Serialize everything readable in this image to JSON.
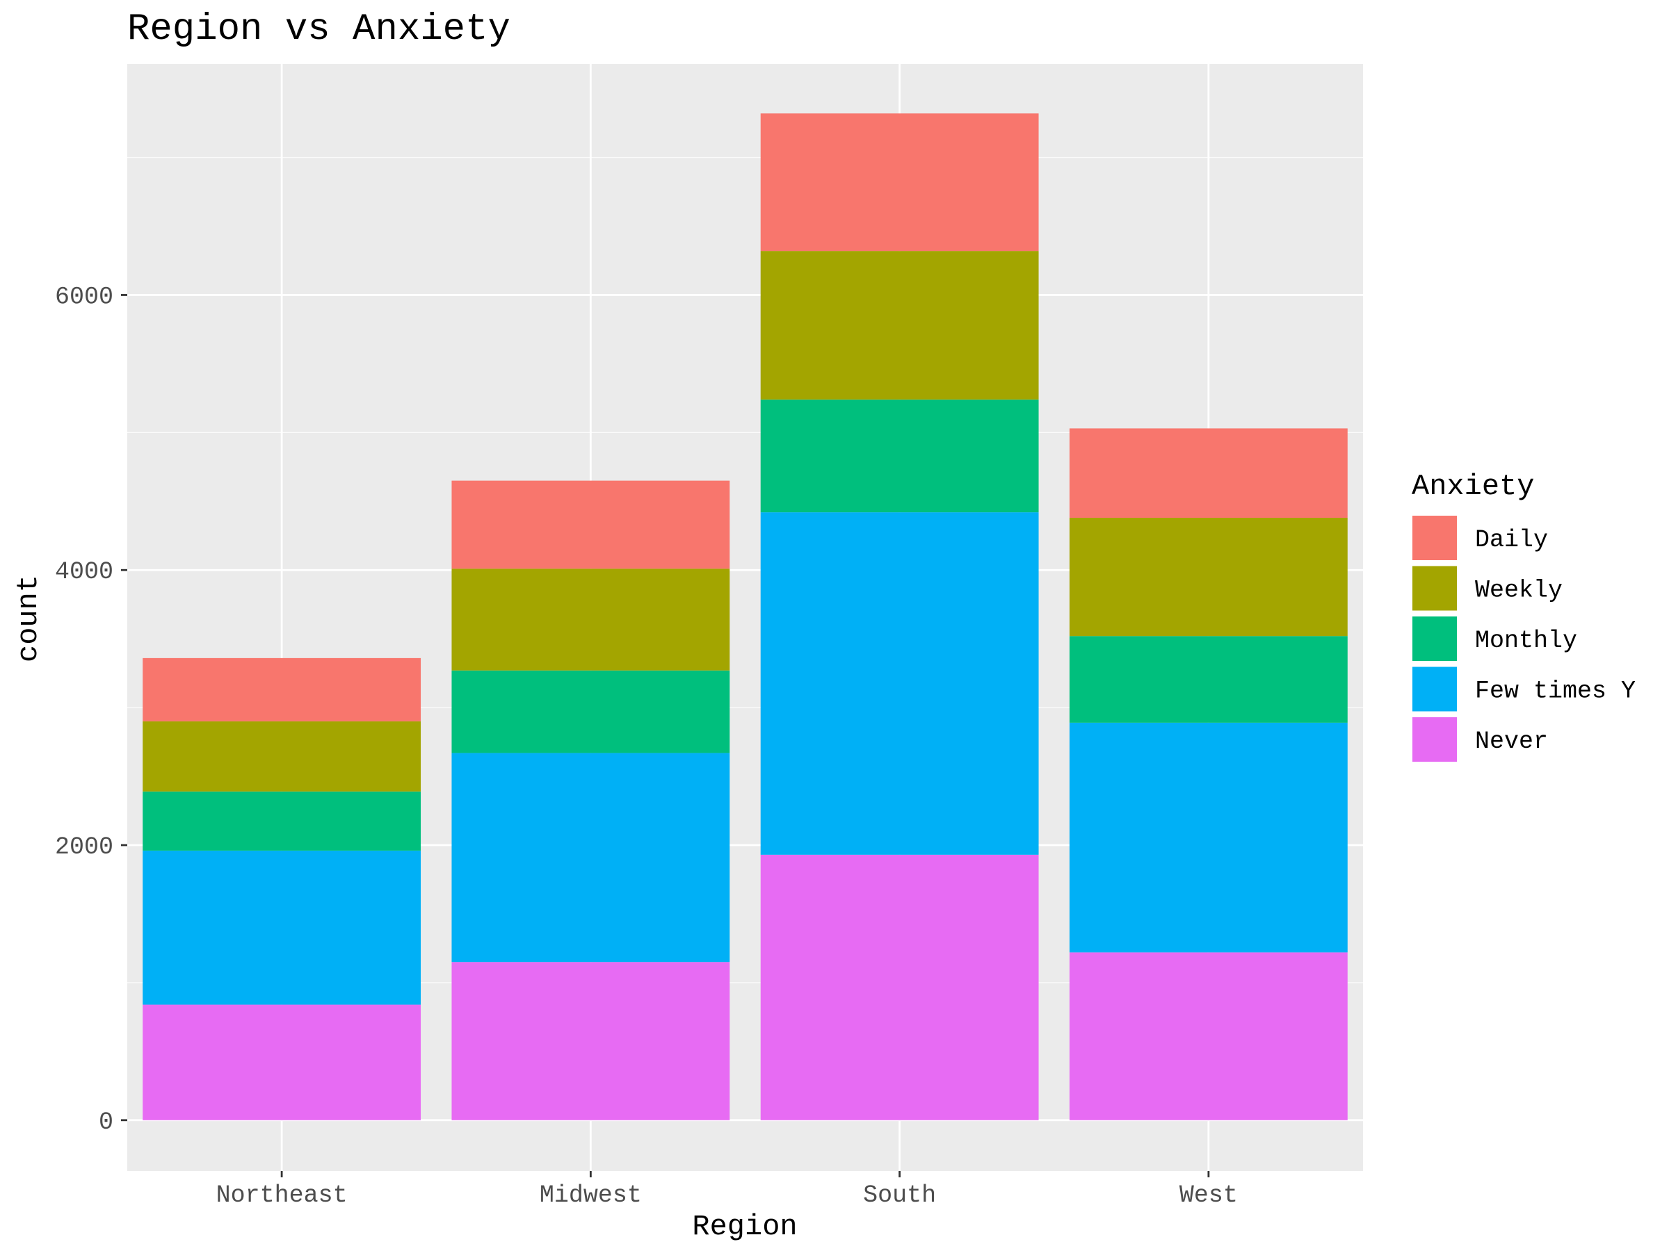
{
  "chart_data": {
    "type": "bar",
    "stacked": true,
    "title": "Region vs Anxiety",
    "xlabel": "Region",
    "ylabel": "count",
    "categories": [
      "Northeast",
      "Midwest",
      "South",
      "West"
    ],
    "series": [
      {
        "name": "Never",
        "color": "#E76BF3",
        "values": [
          840,
          1150,
          1930,
          1220
        ]
      },
      {
        "name": "Few times Y",
        "color": "#00B0F6",
        "values": [
          1120,
          1520,
          2490,
          1670
        ]
      },
      {
        "name": "Monthly",
        "color": "#00BF7D",
        "values": [
          430,
          600,
          820,
          630
        ]
      },
      {
        "name": "Weekly",
        "color": "#A3A500",
        "values": [
          510,
          740,
          1080,
          860
        ]
      },
      {
        "name": "Daily",
        "color": "#F8766D",
        "values": [
          460,
          640,
          1000,
          650
        ]
      }
    ],
    "ylim": [
      -370,
      7680
    ],
    "yticks": [
      0,
      2000,
      4000,
      6000
    ],
    "grid": true,
    "legend": {
      "title": "Anxiety",
      "placement": "right",
      "order": [
        "Daily",
        "Weekly",
        "Monthly",
        "Few times Y",
        "Never"
      ]
    },
    "colors": {
      "panel_background": "#EBEBEB",
      "grid_major": "#FFFFFF",
      "tick_text": "#4D4D4D"
    }
  }
}
